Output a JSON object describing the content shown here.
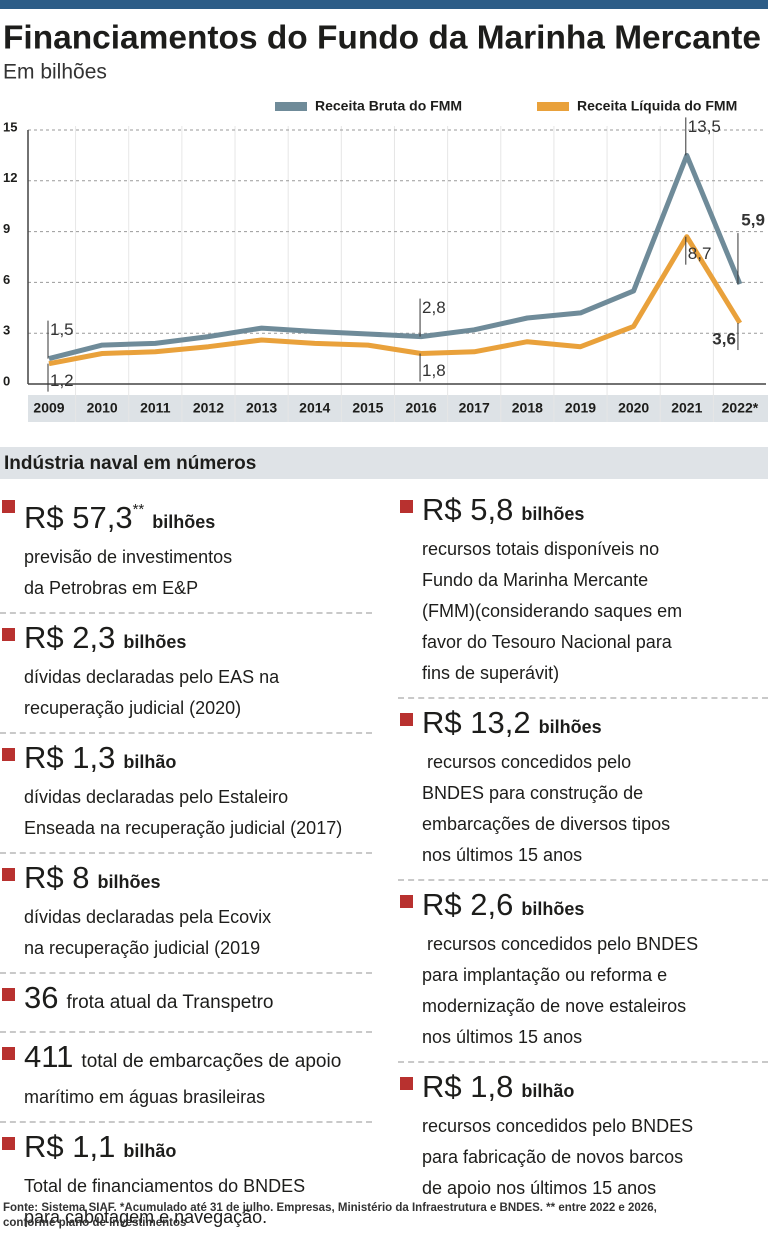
{
  "chart_data": {
    "type": "line",
    "title": "Financiamentos do Fundo da Marinha Mercante",
    "subtitle": "Em bilhões",
    "categories": [
      "2009",
      "2010",
      "2011",
      "2012",
      "2013",
      "2014",
      "2015",
      "2016",
      "2017",
      "2018",
      "2019",
      "2020",
      "2021",
      "2022*"
    ],
    "series": [
      {
        "name": "Receita Bruta do FMM",
        "color": "#6f8b99",
        "values": [
          1.5,
          2.3,
          2.4,
          2.8,
          3.3,
          3.1,
          2.95,
          2.8,
          3.2,
          3.9,
          4.2,
          5.5,
          13.5,
          5.9
        ],
        "value_labels": [
          "1,5",
          null,
          null,
          null,
          null,
          null,
          null,
          "2,8",
          null,
          null,
          null,
          null,
          "13,5",
          "5,9"
        ]
      },
      {
        "name": "Receita Líquida do FMM",
        "color": "#e9a13b",
        "values": [
          1.2,
          1.8,
          1.9,
          2.2,
          2.6,
          2.4,
          2.3,
          1.8,
          1.9,
          2.5,
          2.2,
          3.4,
          8.7,
          3.6
        ],
        "value_labels": [
          "1,2",
          null,
          null,
          null,
          null,
          null,
          null,
          "1,8",
          null,
          null,
          null,
          null,
          "8,7",
          "3,6"
        ]
      }
    ],
    "ylim": [
      0,
      15
    ],
    "yticks": [
      0,
      3,
      6,
      9,
      12,
      15
    ],
    "grid": true,
    "legend": "top-right"
  },
  "section_title": "Indústria naval em números",
  "facts": {
    "left": [
      {
        "value": "R$ 57,3",
        "note": "**",
        "unit": "bilhões",
        "lines": [
          "previsão de investimentos",
          "da Petrobras em E&P"
        ]
      },
      {
        "value": "R$ 2,3",
        "unit": "bilhões",
        "lines": [
          "dívidas declaradas pelo EAS na",
          "recuperação judicial (2020)"
        ]
      },
      {
        "value": "R$ 1,3",
        "unit": "bilhão",
        "lines": [
          "dívidas declaradas pelo Estaleiro",
          "Enseada na recuperação judicial (2017)"
        ]
      },
      {
        "value": "R$ 8",
        "unit": "bilhões",
        "lines": [
          "dívidas declaradas pela Ecovix",
          "na recuperação judicial (2019"
        ]
      },
      {
        "value": "36",
        "unit": "frota atual da Transpetro",
        "lines": []
      },
      {
        "value": "411",
        "unit": "total de embarcações de apoio",
        "lines": [
          "marítimo em águas brasileiras"
        ]
      },
      {
        "value": "R$ 1,1",
        "unit": "bilhão",
        "lines": [
          "Total de financiamentos do BNDES",
          "para cabotagem e navegação."
        ]
      }
    ],
    "right": [
      {
        "value": "R$ 5,8",
        "unit": "bilhões",
        "lines": [
          "recursos totais disponíveis no",
          "Fundo da Marinha Mercante",
          "(FMM)(considerando saques em",
          "favor do Tesouro Nacional para",
          "fins de superávit)"
        ]
      },
      {
        "value": "R$ 13,2",
        "unit": "bilhões",
        "lines": [
          " recursos concedidos pelo",
          "BNDES para construção de",
          "embarcações de diversos tipos",
          "nos últimos 15 anos"
        ]
      },
      {
        "value": "R$ 2,6",
        "unit": "bilhões",
        "lines": [
          " recursos concedidos pelo BNDES",
          "para implantação ou reforma e",
          "modernização de nove estaleiros",
          "nos últimos 15 anos"
        ]
      },
      {
        "value": "R$ 1,8",
        "unit": "bilhão",
        "lines": [
          "recursos concedidos pelo BNDES",
          "para fabricação de novos barcos",
          "de apoio nos últimos 15 anos"
        ]
      }
    ]
  },
  "source": [
    "Fonte: Sistema SIAF. *Acumulado até 31 de julho. Empresas, Ministério da Infraestrutura e BNDES. ** entre 2022 e 2026,",
    "conforme plano de investimentos"
  ]
}
